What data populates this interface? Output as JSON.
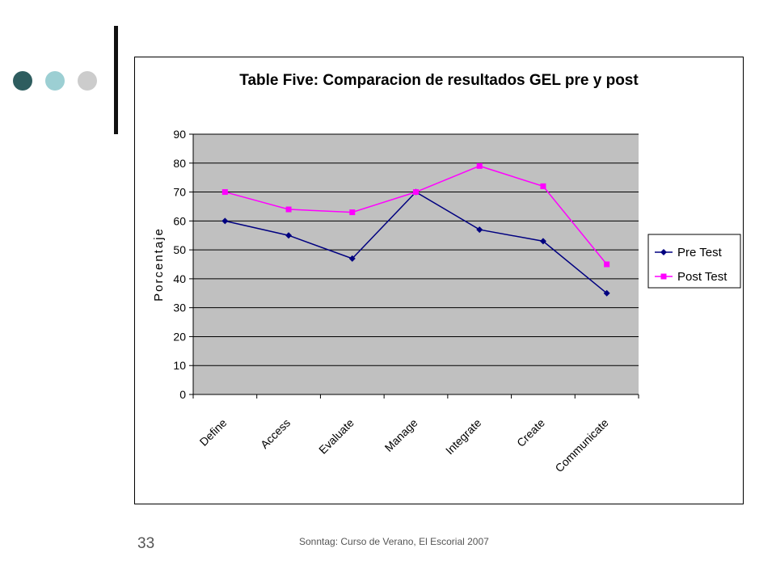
{
  "slide": {
    "page_number": "33",
    "footer": "Sonntag: Curso de Verano, El Escorial 2007"
  },
  "chart_data": {
    "type": "line",
    "title": "Table Five: Comparacion de resultados GEL pre y post",
    "xlabel": "",
    "ylabel": "Porcentaje",
    "ylim": [
      0,
      90
    ],
    "yticks": [
      0,
      10,
      20,
      30,
      40,
      50,
      60,
      70,
      80,
      90
    ],
    "grid": true,
    "legend_position": "right",
    "categories": [
      "Define",
      "Access",
      "Evaluate",
      "Manage",
      "Integrate",
      "Create",
      "Communicate"
    ],
    "series": [
      {
        "name": "Pre Test",
        "color": "#000080",
        "marker": "diamond",
        "values": [
          60,
          55,
          47,
          70,
          57,
          53,
          35
        ]
      },
      {
        "name": "Post Test",
        "color": "#ff00ff",
        "marker": "square",
        "values": [
          70,
          64,
          63,
          70,
          79,
          72,
          45
        ]
      }
    ]
  }
}
